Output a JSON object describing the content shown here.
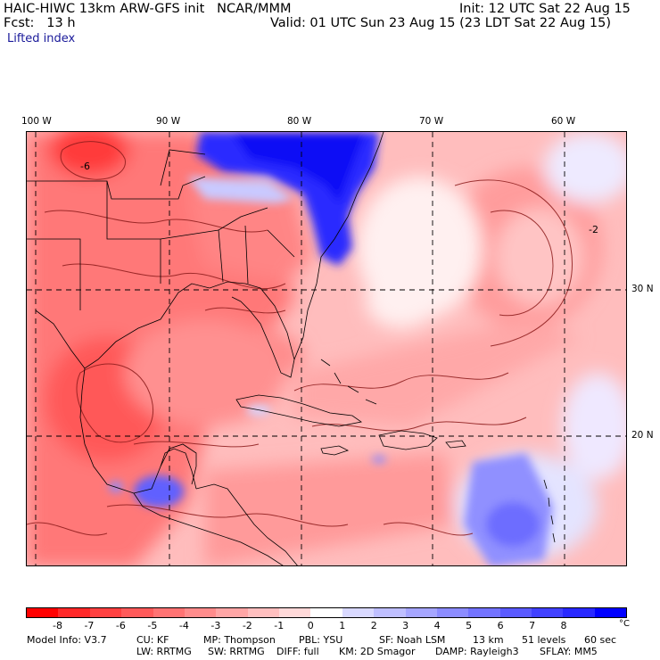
{
  "header": {
    "model_line": "HAIC-HIWC 13km ARW-GFS init   NCAR/MMM",
    "init_line": "Init: 12 UTC Sat 22 Aug 15",
    "fcst_line": "Fcst:   13 h",
    "valid_line": "Valid: 01 UTC Sun 23 Aug 15 (23 LDT Sat 22 Aug 15)",
    "field_name": "Lifted index"
  },
  "map": {
    "lon_labels": [
      "100 W",
      "90 W",
      "80 W",
      "70 W",
      "60 W"
    ],
    "lat_labels": [
      "30 N",
      "20 N"
    ],
    "contour_labels": [
      "-6",
      "-2"
    ]
  },
  "colorbar": {
    "colors": [
      "#ff0000",
      "#ff2828",
      "#ff4141",
      "#ff5a5a",
      "#ff7373",
      "#ff8c8c",
      "#ffa6a6",
      "#ffbfbf",
      "#ffd9d9",
      "#ffffff",
      "#d9d9ff",
      "#bfbfff",
      "#a6a6ff",
      "#8c8cff",
      "#7373ff",
      "#5a5aff",
      "#4141ff",
      "#2828ff",
      "#0000ff"
    ],
    "tick_labels": [
      "-8",
      "-7",
      "-6",
      "-5",
      "-4",
      "-3",
      "-2",
      "-1",
      "0",
      "1",
      "2",
      "3",
      "4",
      "5",
      "6",
      "7",
      "8"
    ],
    "unit": "°C"
  },
  "footer": {
    "line1": [
      "Model Info: V3.7",
      "CU: KF",
      "MP: Thompson",
      "PBL: YSU",
      "SF: Noah LSM",
      "13 km",
      "51 levels",
      "60 sec"
    ],
    "line2": [
      "LW: RRTMG",
      "SW: RRTMG",
      "DIFF: full",
      "KM: 2D Smagor",
      "DAMP: Rayleigh3",
      "SFLAY: MM5"
    ]
  }
}
